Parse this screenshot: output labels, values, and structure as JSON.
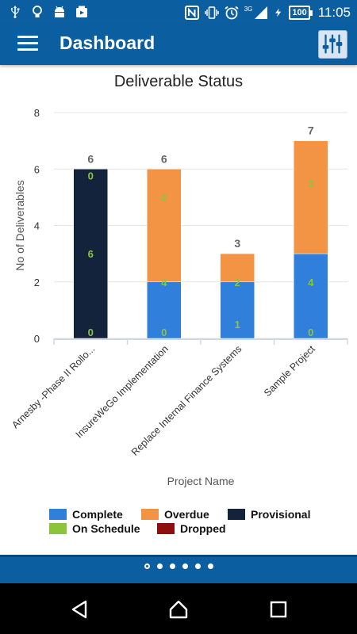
{
  "status_bar": {
    "network_label": "3G",
    "battery_level": "100",
    "time": "11:05",
    "icons": [
      "usb-icon",
      "lightbulb-icon",
      "android-icon",
      "video-icon",
      "nfc-icon",
      "vibrate-icon",
      "alarm-icon",
      "signal-icon",
      "charging-icon",
      "battery-icon"
    ]
  },
  "app_bar": {
    "title": "Dashboard",
    "menu_icon": "hamburger-menu-icon",
    "filter_icon": "sliders-icon",
    "color": "#0b5fa0"
  },
  "chart_data": {
    "type": "bar",
    "stacked": true,
    "title": "Deliverable Status",
    "xlabel": "Project Name",
    "ylabel": "No of Deliverables",
    "ylim": [
      0,
      8
    ],
    "yticks": [
      0,
      2,
      4,
      6,
      8
    ],
    "grid": true,
    "legend_position": "bottom",
    "categories": [
      "Arnesby -Phase II Rollo...",
      "InsureWeGo Implementation",
      "Replace Internal Finance Systems",
      "Sample Project"
    ],
    "totals": [
      6,
      6,
      3,
      7
    ],
    "series": [
      {
        "name": "Complete",
        "color": "#2f7fdb",
        "values": [
          0,
          2,
          2,
          3
        ]
      },
      {
        "name": "Overdue",
        "color": "#f39444",
        "values": [
          0,
          4,
          1,
          4
        ]
      },
      {
        "name": "Provisional",
        "color": "#13233c",
        "values": [
          6,
          0,
          0,
          0
        ]
      },
      {
        "name": "On Schedule",
        "color": "#8cc43c",
        "values": [
          0,
          0,
          0,
          0
        ]
      },
      {
        "name": "Dropped",
        "color": "#8c1010",
        "values": [
          0,
          0,
          0,
          0
        ]
      }
    ],
    "segment_labels": [
      [
        {
          "value": "0",
          "at": 6
        },
        {
          "value": "6",
          "at": 3
        },
        {
          "value": "0",
          "at": 0
        }
      ],
      [
        {
          "value": "2",
          "at": 5
        },
        {
          "value": "4",
          "at": 2
        },
        {
          "value": "0",
          "at": 0
        }
      ],
      [
        {
          "value": "2",
          "at": 2
        },
        {
          "value": "1",
          "at": 0.5
        }
      ],
      [
        {
          "value": "3",
          "at": 5.5
        },
        {
          "value": "4",
          "at": 2
        },
        {
          "value": "0",
          "at": 0
        }
      ]
    ],
    "segment_label_color": "#8cc43c"
  },
  "pager": {
    "count": 6,
    "active": 0
  },
  "nav": {
    "back_icon": "back-triangle-icon",
    "home_icon": "home-icon",
    "recents_icon": "recents-square-icon"
  }
}
